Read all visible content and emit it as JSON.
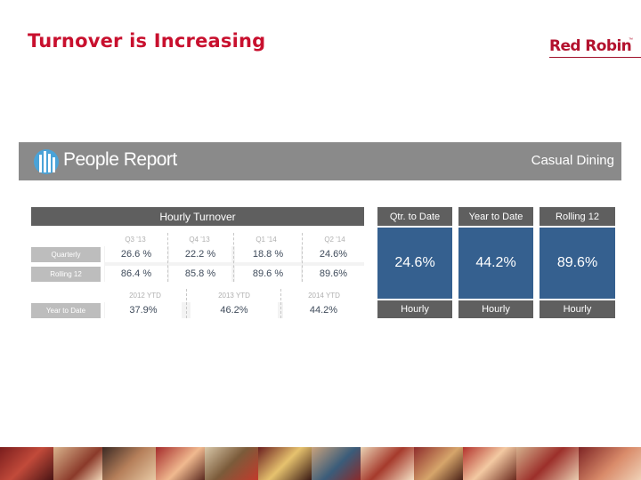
{
  "slide": {
    "title": "Turnover is Increasing"
  },
  "logo": {
    "text": "Red Robin",
    "tm": "™"
  },
  "banner": {
    "brand": "People Report",
    "segment": "Casual Dining"
  },
  "hourly_turnover": {
    "header": "Hourly Turnover",
    "quarter_columns": [
      "Q3 '13",
      "Q4 '13",
      "Q1 '14",
      "Q2 '14"
    ],
    "rows": [
      {
        "label": "Quarterly",
        "values": [
          "26.6 %",
          "22.2 %",
          "18.8 %",
          "24.6%"
        ]
      },
      {
        "label": "Rolling 12",
        "values": [
          "86.4 %",
          "85.8 %",
          "89.6 %",
          "89.6%"
        ]
      }
    ],
    "ytd_columns": [
      "2012 YTD",
      "2013 YTD",
      "2014 YTD"
    ],
    "ytd_row": {
      "label": "Year to Date",
      "values": [
        "37.9%",
        "46.2%",
        "44.2%"
      ]
    }
  },
  "kpis": [
    {
      "title": "Qtr. to Date",
      "value": "24.6%",
      "footer": "Hourly"
    },
    {
      "title": "Year to Date",
      "value": "44.2%",
      "footer": "Hourly"
    },
    {
      "title": "Rolling 12",
      "value": "89.6%",
      "footer": "Hourly"
    }
  ],
  "colors": {
    "title_red": "#c8102e",
    "kpi_blue": "#35608f",
    "header_grey": "#5f5f5f",
    "banner_grey": "#8a8a8a"
  }
}
